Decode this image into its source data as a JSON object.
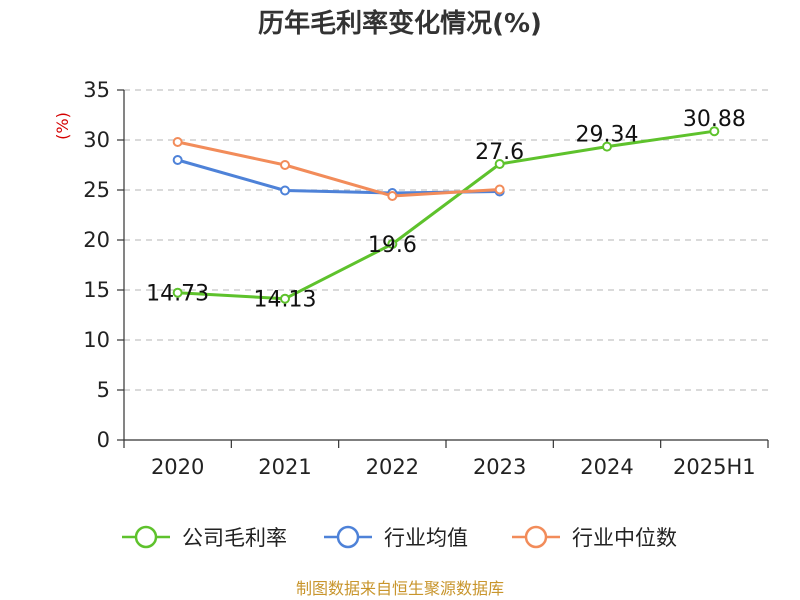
{
  "chart_data": {
    "type": "line",
    "title": "历年毛利率变化情况(%)",
    "ylabel": "(%)",
    "xlabel": "",
    "categories": [
      "2020",
      "2021",
      "2022",
      "2023",
      "2024",
      "2025H1"
    ],
    "ylim": [
      0,
      35
    ],
    "yticks": [
      "0",
      "5",
      "10",
      "15",
      "20",
      "25",
      "30",
      "35"
    ],
    "grid": true,
    "legend_position": "bottom",
    "series": [
      {
        "name": "公司毛利率",
        "color": "#5ec22c",
        "values": [
          14.73,
          14.13,
          19.6,
          27.6,
          29.34,
          30.88
        ],
        "labels": [
          "14.73",
          "14.13",
          "19.6",
          "27.6",
          "29.34",
          "30.88"
        ]
      },
      {
        "name": "行业均值",
        "color": "#4e82d8",
        "values": [
          28.0,
          24.95,
          24.7,
          24.85,
          null,
          null
        ],
        "labels": []
      },
      {
        "name": "行业中位数",
        "color": "#f28c5a",
        "values": [
          29.8,
          27.5,
          24.4,
          25.05,
          null,
          null
        ],
        "labels": []
      }
    ]
  },
  "source": "制图数据来自恒生聚源数据库"
}
